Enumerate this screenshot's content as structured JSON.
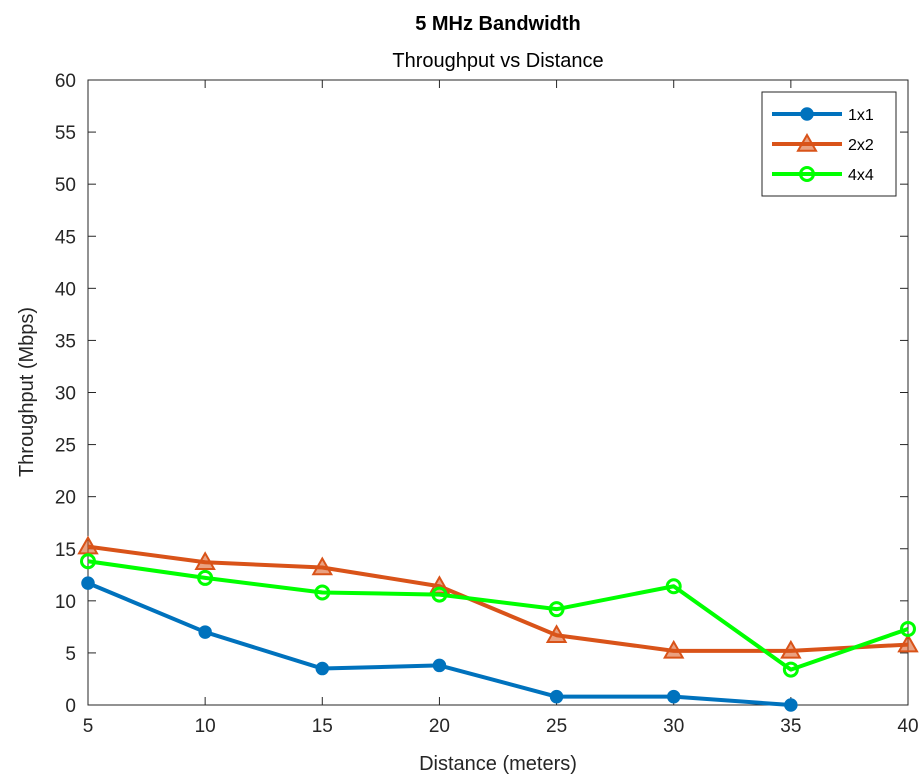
{
  "chart_data": {
    "type": "line",
    "title": "5 MHz Bandwidth",
    "subtitle": "Throughput vs Distance",
    "xlabel": "Distance (meters)",
    "ylabel": "Throughput (Mbps)",
    "xlim": [
      5,
      40
    ],
    "ylim": [
      0,
      60
    ],
    "xticks": [
      5,
      10,
      15,
      20,
      25,
      30,
      35,
      40
    ],
    "yticks": [
      0,
      5,
      10,
      15,
      20,
      25,
      30,
      35,
      40,
      45,
      50,
      55,
      60
    ],
    "grid": false,
    "legend_position": "top-right",
    "series": [
      {
        "name": "1x1",
        "color": "#0072BD",
        "marker": "circle-filled",
        "x": [
          5,
          10,
          15,
          20,
          25,
          30,
          35
        ],
        "y": [
          11.7,
          7.0,
          3.5,
          3.8,
          0.8,
          0.8,
          0.0
        ]
      },
      {
        "name": "2x2",
        "color": "#D95319",
        "marker": "triangle",
        "x": [
          5,
          10,
          15,
          20,
          25,
          30,
          35,
          40
        ],
        "y": [
          15.2,
          13.7,
          13.2,
          11.4,
          6.7,
          5.2,
          5.2,
          5.8
        ]
      },
      {
        "name": "4x4",
        "color": "#00FF00",
        "marker": "circle-open",
        "x": [
          5,
          10,
          15,
          20,
          25,
          30,
          35,
          40
        ],
        "y": [
          13.8,
          12.2,
          10.8,
          10.6,
          9.2,
          11.4,
          3.4,
          7.3
        ]
      }
    ]
  }
}
